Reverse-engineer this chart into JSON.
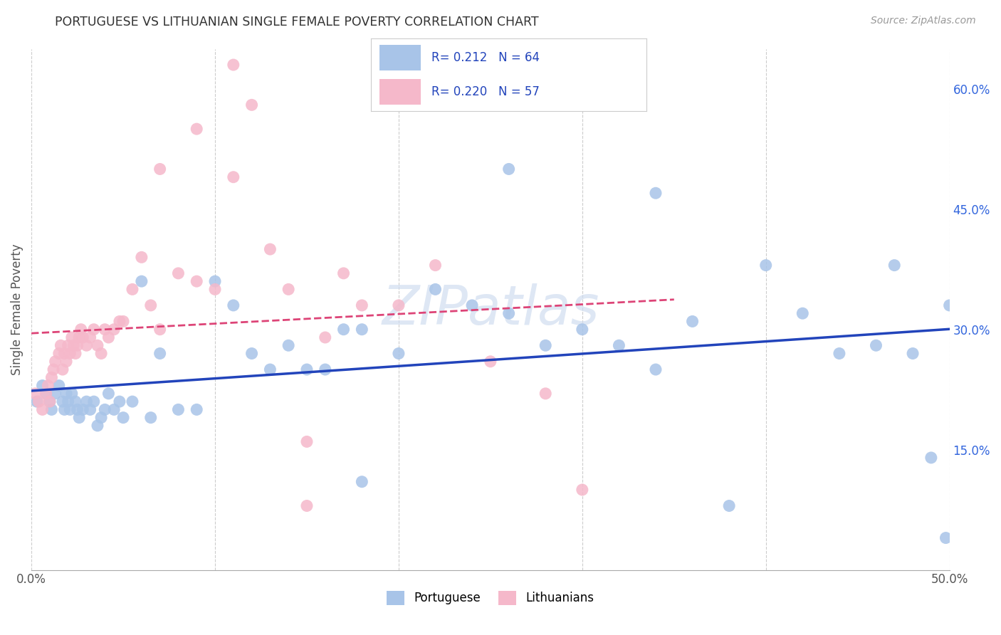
{
  "title": "PORTUGUESE VS LITHUANIAN SINGLE FEMALE POVERTY CORRELATION CHART",
  "source": "Source: ZipAtlas.com",
  "ylabel": "Single Female Poverty",
  "xlim": [
    0.0,
    0.5
  ],
  "ylim": [
    0.0,
    0.65
  ],
  "xticks": [
    0.0,
    0.1,
    0.2,
    0.3,
    0.4,
    0.5
  ],
  "xtick_labels": [
    "0.0%",
    "",
    "",
    "",
    "",
    "50.0%"
  ],
  "ytick_positions_right": [
    0.0,
    0.15,
    0.3,
    0.45,
    0.6
  ],
  "ytick_labels_right": [
    "",
    "15.0%",
    "30.0%",
    "45.0%",
    "60.0%"
  ],
  "portuguese_color": "#a8c4e8",
  "lithuanian_color": "#f5b8ca",
  "portuguese_line_color": "#2244bb",
  "lithuanian_line_color": "#dd4477",
  "portuguese_R": "0.212",
  "portuguese_N": "64",
  "lithuanian_R": "0.220",
  "lithuanian_N": "57",
  "watermark": "ZIPatlas",
  "portuguese_x": [
    0.003,
    0.006,
    0.008,
    0.01,
    0.011,
    0.013,
    0.015,
    0.017,
    0.018,
    0.019,
    0.02,
    0.021,
    0.022,
    0.024,
    0.025,
    0.026,
    0.028,
    0.03,
    0.032,
    0.034,
    0.036,
    0.038,
    0.04,
    0.042,
    0.045,
    0.048,
    0.05,
    0.055,
    0.06,
    0.065,
    0.07,
    0.08,
    0.09,
    0.1,
    0.11,
    0.12,
    0.13,
    0.14,
    0.15,
    0.16,
    0.17,
    0.18,
    0.2,
    0.22,
    0.24,
    0.26,
    0.28,
    0.3,
    0.32,
    0.34,
    0.36,
    0.38,
    0.4,
    0.42,
    0.44,
    0.46,
    0.47,
    0.48,
    0.49,
    0.498,
    0.34,
    0.26,
    0.18,
    0.5
  ],
  "portuguese_y": [
    0.21,
    0.23,
    0.22,
    0.21,
    0.2,
    0.22,
    0.23,
    0.21,
    0.2,
    0.22,
    0.21,
    0.2,
    0.22,
    0.21,
    0.2,
    0.19,
    0.2,
    0.21,
    0.2,
    0.21,
    0.18,
    0.19,
    0.2,
    0.22,
    0.2,
    0.21,
    0.19,
    0.21,
    0.36,
    0.19,
    0.27,
    0.2,
    0.2,
    0.36,
    0.33,
    0.27,
    0.25,
    0.28,
    0.25,
    0.25,
    0.3,
    0.3,
    0.27,
    0.35,
    0.33,
    0.32,
    0.28,
    0.3,
    0.28,
    0.25,
    0.31,
    0.08,
    0.38,
    0.32,
    0.27,
    0.28,
    0.38,
    0.27,
    0.14,
    0.04,
    0.47,
    0.5,
    0.11,
    0.33
  ],
  "lithuanian_x": [
    0.002,
    0.004,
    0.006,
    0.008,
    0.009,
    0.01,
    0.011,
    0.012,
    0.013,
    0.015,
    0.016,
    0.017,
    0.018,
    0.019,
    0.02,
    0.021,
    0.022,
    0.023,
    0.024,
    0.025,
    0.026,
    0.027,
    0.028,
    0.03,
    0.032,
    0.034,
    0.036,
    0.038,
    0.04,
    0.042,
    0.045,
    0.048,
    0.05,
    0.055,
    0.06,
    0.065,
    0.07,
    0.08,
    0.09,
    0.1,
    0.11,
    0.12,
    0.13,
    0.14,
    0.15,
    0.16,
    0.17,
    0.18,
    0.2,
    0.22,
    0.25,
    0.28,
    0.3,
    0.11,
    0.09,
    0.07,
    0.15
  ],
  "lithuanian_y": [
    0.22,
    0.21,
    0.2,
    0.22,
    0.23,
    0.21,
    0.24,
    0.25,
    0.26,
    0.27,
    0.28,
    0.25,
    0.27,
    0.26,
    0.28,
    0.27,
    0.29,
    0.28,
    0.27,
    0.28,
    0.29,
    0.3,
    0.29,
    0.28,
    0.29,
    0.3,
    0.28,
    0.27,
    0.3,
    0.29,
    0.3,
    0.31,
    0.31,
    0.35,
    0.39,
    0.33,
    0.3,
    0.37,
    0.36,
    0.35,
    0.49,
    0.58,
    0.4,
    0.35,
    0.16,
    0.29,
    0.37,
    0.33,
    0.33,
    0.38,
    0.26,
    0.22,
    0.1,
    0.63,
    0.55,
    0.5,
    0.08
  ]
}
